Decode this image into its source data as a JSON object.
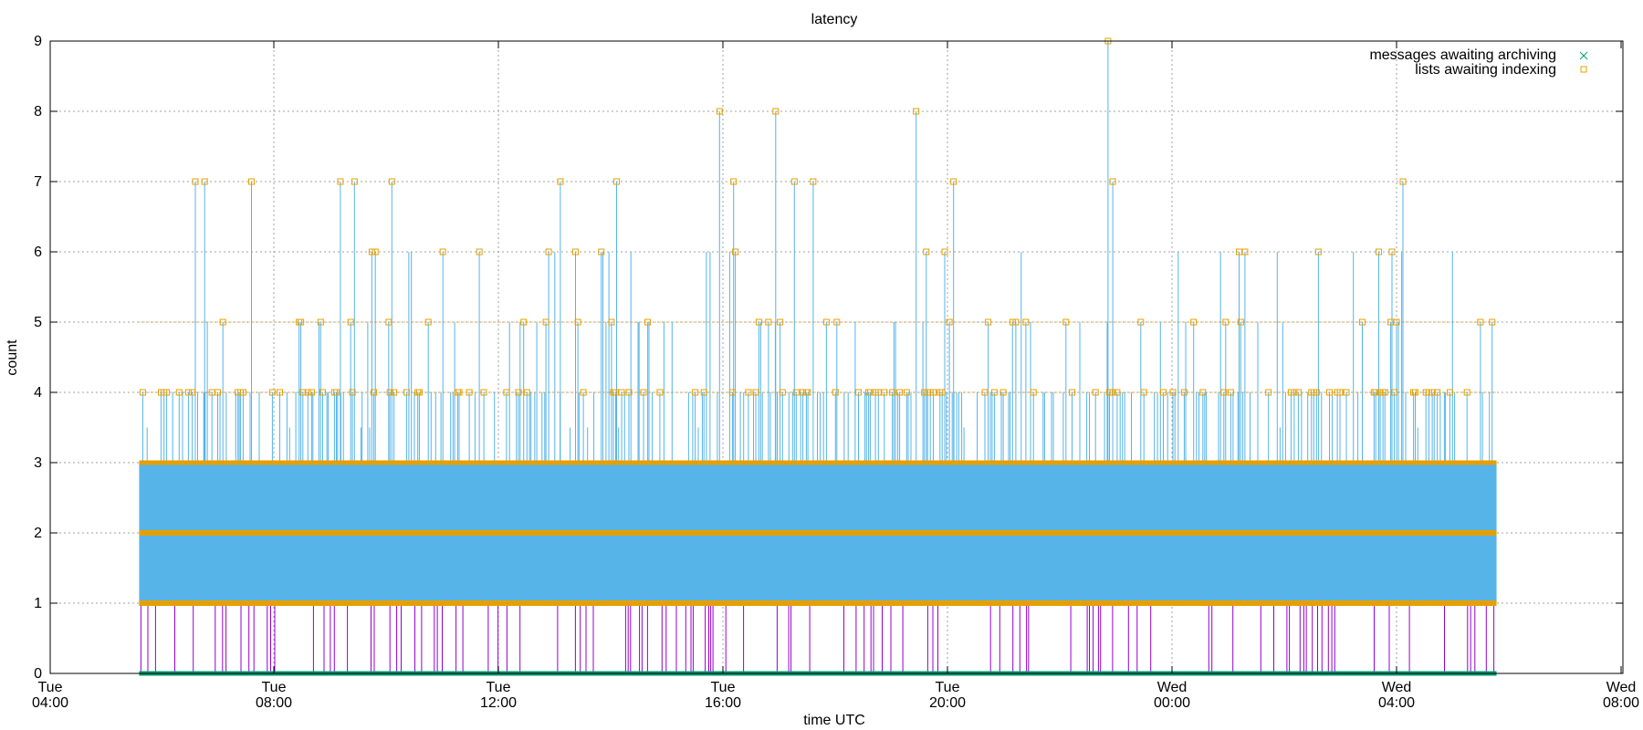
{
  "chart_data": {
    "type": "line",
    "title": "latency",
    "xlabel": "time UTC",
    "ylabel": "count",
    "xlim": [
      "Tue 04:00",
      "Wed 08:00"
    ],
    "ylim": [
      0,
      9
    ],
    "grid": true,
    "legend_position": "top-right",
    "x_ticks": [
      {
        "day": "Tue",
        "time": "04:00"
      },
      {
        "day": "Tue",
        "time": "08:00"
      },
      {
        "day": "Tue",
        "time": "12:00"
      },
      {
        "day": "Tue",
        "time": "16:00"
      },
      {
        "day": "Tue",
        "time": "20:00"
      },
      {
        "day": "Wed",
        "time": "00:00"
      },
      {
        "day": "Wed",
        "time": "04:00"
      },
      {
        "day": "Wed",
        "time": "08:00"
      }
    ],
    "y_ticks": [
      "0",
      "1",
      "2",
      "3",
      "4",
      "5",
      "6",
      "7",
      "8",
      "9"
    ],
    "series": [
      {
        "name": "messages awaiting archiving",
        "marker": "x",
        "color": "#009e73",
        "x_range": [
          "Tue 05:35",
          "Wed 05:45"
        ],
        "values_note_free": true,
        "values": [
          0,
          0
        ]
      },
      {
        "name": "lists awaiting indexing",
        "marker": "square",
        "color": "#e69f00",
        "x_range": [
          "Tue 05:35",
          "Wed 05:45"
        ],
        "values_range": [
          1,
          9
        ],
        "peaks": [
          {
            "x": "Tue 06:35",
            "y": 7
          },
          {
            "x": "Tue 06:45",
            "y": 7
          },
          {
            "x": "Tue 07:35",
            "y": 7
          },
          {
            "x": "Tue 09:10",
            "y": 7
          },
          {
            "x": "Tue 09:25",
            "y": 7
          },
          {
            "x": "Tue 10:05",
            "y": 7
          },
          {
            "x": "Tue 13:05",
            "y": 7
          },
          {
            "x": "Tue 14:05",
            "y": 7
          },
          {
            "x": "Tue 15:55",
            "y": 8
          },
          {
            "x": "Tue 16:10",
            "y": 7
          },
          {
            "x": "Tue 16:55",
            "y": 8
          },
          {
            "x": "Tue 17:15",
            "y": 7
          },
          {
            "x": "Tue 17:35",
            "y": 7
          },
          {
            "x": "Tue 19:25",
            "y": 8
          },
          {
            "x": "Tue 20:05",
            "y": 7
          },
          {
            "x": "Tue 22:50",
            "y": 9
          },
          {
            "x": "Tue 22:55",
            "y": 7
          },
          {
            "x": "Wed 01:10",
            "y": 6
          },
          {
            "x": "Wed 04:05",
            "y": 7
          }
        ]
      }
    ]
  },
  "colors": {
    "fill_blue": "#56b4e9",
    "orange": "#e69f00",
    "purple": "#9400d3",
    "green": "#009e73",
    "grid": "#a0a0a0"
  }
}
